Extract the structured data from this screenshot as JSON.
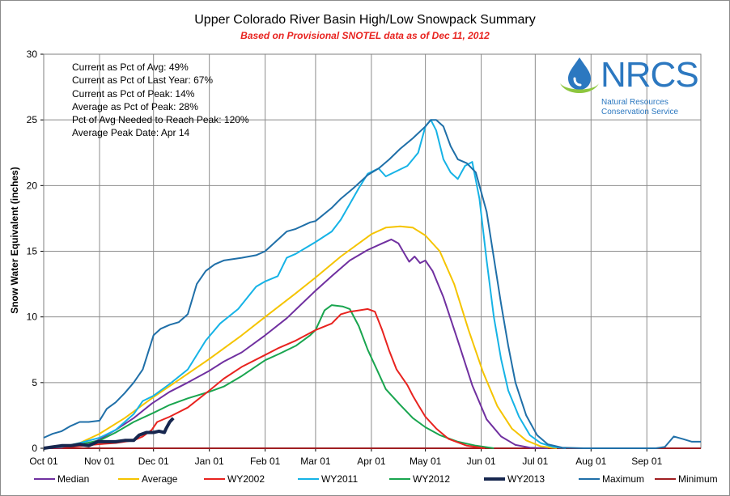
{
  "chart_data": {
    "type": "line",
    "title": "Upper Colorado River Basin High/Low Snowpack Summary",
    "subtitle": "Based on Provisional SNOTEL data as of Dec 11, 2012",
    "ylabel": "Snow Water Equivalent (inches)",
    "xlabel": "",
    "ylim": [
      0,
      30
    ],
    "yticks": [
      0,
      5,
      10,
      15,
      20,
      25,
      30
    ],
    "x_unit": "days since Oct 01",
    "xlim": [
      0,
      365
    ],
    "xticks": [
      {
        "label": "Oct 01",
        "day": 0
      },
      {
        "label": "Nov 01",
        "day": 31
      },
      {
        "label": "Dec 01",
        "day": 61
      },
      {
        "label": "Jan 01",
        "day": 92
      },
      {
        "label": "Feb 01",
        "day": 123
      },
      {
        "label": "Mar 01",
        "day": 151
      },
      {
        "label": "Apr 01",
        "day": 182
      },
      {
        "label": "May 01",
        "day": 212
      },
      {
        "label": "Jun 01",
        "day": 243
      },
      {
        "label": "Jul 01",
        "day": 273
      },
      {
        "label": "Aug 01",
        "day": 304
      },
      {
        "label": "Sep 01",
        "day": 335
      }
    ],
    "grid": true,
    "legend_position": "bottom",
    "series": [
      {
        "name": "Median",
        "color": "#7030a0",
        "width": 2,
        "points": [
          [
            0,
            0
          ],
          [
            10,
            0.05
          ],
          [
            20,
            0.2
          ],
          [
            30,
            0.6
          ],
          [
            40,
            1.4
          ],
          [
            50,
            2.3
          ],
          [
            60,
            3.4
          ],
          [
            70,
            4.3
          ],
          [
            80,
            5.0
          ],
          [
            92,
            5.9
          ],
          [
            100,
            6.6
          ],
          [
            110,
            7.3
          ],
          [
            123,
            8.6
          ],
          [
            135,
            9.9
          ],
          [
            151,
            12.0
          ],
          [
            160,
            13.1
          ],
          [
            170,
            14.3
          ],
          [
            180,
            15.1
          ],
          [
            188,
            15.6
          ],
          [
            193,
            15.9
          ],
          [
            197,
            15.6
          ],
          [
            200,
            14.9
          ],
          [
            203,
            14.2
          ],
          [
            206,
            14.6
          ],
          [
            209,
            14.1
          ],
          [
            212,
            14.3
          ],
          [
            216,
            13.5
          ],
          [
            222,
            11.5
          ],
          [
            230,
            8.2
          ],
          [
            238,
            4.8
          ],
          [
            246,
            2.2
          ],
          [
            254,
            0.9
          ],
          [
            262,
            0.25
          ],
          [
            270,
            0.05
          ],
          [
            280,
            0
          ]
        ]
      },
      {
        "name": "Average",
        "color": "#f5c400",
        "width": 2,
        "points": [
          [
            0,
            0
          ],
          [
            10,
            0.1
          ],
          [
            20,
            0.4
          ],
          [
            31,
            1.1
          ],
          [
            45,
            2.3
          ],
          [
            61,
            3.9
          ],
          [
            75,
            5.2
          ],
          [
            92,
            6.8
          ],
          [
            110,
            8.6
          ],
          [
            123,
            10.0
          ],
          [
            140,
            11.8
          ],
          [
            151,
            13.0
          ],
          [
            165,
            14.6
          ],
          [
            182,
            16.3
          ],
          [
            190,
            16.8
          ],
          [
            198,
            16.9
          ],
          [
            205,
            16.8
          ],
          [
            212,
            16.2
          ],
          [
            220,
            15.0
          ],
          [
            228,
            12.5
          ],
          [
            236,
            9.0
          ],
          [
            244,
            5.8
          ],
          [
            252,
            3.2
          ],
          [
            260,
            1.5
          ],
          [
            268,
            0.6
          ],
          [
            276,
            0.15
          ],
          [
            285,
            0
          ]
        ]
      },
      {
        "name": "WY2002",
        "color": "#e8231f",
        "width": 2,
        "points": [
          [
            0,
            0
          ],
          [
            15,
            0.1
          ],
          [
            30,
            0.3
          ],
          [
            40,
            0.4
          ],
          [
            45,
            0.5
          ],
          [
            50,
            0.6
          ],
          [
            55,
            0.9
          ],
          [
            60,
            1.4
          ],
          [
            63,
            2.0
          ],
          [
            70,
            2.4
          ],
          [
            80,
            3.1
          ],
          [
            92,
            4.4
          ],
          [
            100,
            5.3
          ],
          [
            110,
            6.2
          ],
          [
            123,
            7.1
          ],
          [
            130,
            7.6
          ],
          [
            140,
            8.2
          ],
          [
            151,
            9.0
          ],
          [
            160,
            9.5
          ],
          [
            165,
            10.2
          ],
          [
            170,
            10.4
          ],
          [
            175,
            10.5
          ],
          [
            180,
            10.6
          ],
          [
            184,
            10.4
          ],
          [
            188,
            9.0
          ],
          [
            192,
            7.4
          ],
          [
            196,
            6.0
          ],
          [
            199,
            5.4
          ],
          [
            202,
            4.8
          ],
          [
            205,
            4.0
          ],
          [
            208,
            3.3
          ],
          [
            212,
            2.4
          ],
          [
            218,
            1.5
          ],
          [
            225,
            0.7
          ],
          [
            235,
            0.2
          ],
          [
            245,
            0
          ]
        ]
      },
      {
        "name": "WY2011",
        "color": "#16b3e6",
        "width": 2,
        "points": [
          [
            0,
            0
          ],
          [
            10,
            0.1
          ],
          [
            20,
            0.4
          ],
          [
            31,
            0.8
          ],
          [
            40,
            1.4
          ],
          [
            50,
            2.6
          ],
          [
            55,
            3.6
          ],
          [
            61,
            4.0
          ],
          [
            70,
            4.9
          ],
          [
            80,
            6.0
          ],
          [
            90,
            8.2
          ],
          [
            98,
            9.5
          ],
          [
            108,
            10.6
          ],
          [
            118,
            12.3
          ],
          [
            123,
            12.7
          ],
          [
            130,
            13.1
          ],
          [
            135,
            14.5
          ],
          [
            140,
            14.8
          ],
          [
            151,
            15.7
          ],
          [
            160,
            16.5
          ],
          [
            165,
            17.4
          ],
          [
            170,
            18.6
          ],
          [
            175,
            19.8
          ],
          [
            180,
            20.9
          ],
          [
            186,
            21.3
          ],
          [
            190,
            20.7
          ],
          [
            196,
            21.1
          ],
          [
            202,
            21.5
          ],
          [
            208,
            22.5
          ],
          [
            212,
            24.5
          ],
          [
            215,
            25.0
          ],
          [
            218,
            24.2
          ],
          [
            222,
            22.0
          ],
          [
            226,
            21.0
          ],
          [
            230,
            20.5
          ],
          [
            234,
            21.5
          ],
          [
            238,
            21.8
          ],
          [
            242,
            19.0
          ],
          [
            246,
            14.3
          ],
          [
            250,
            10.0
          ],
          [
            254,
            6.8
          ],
          [
            258,
            4.4
          ],
          [
            264,
            2.4
          ],
          [
            270,
            1.0
          ],
          [
            276,
            0.4
          ],
          [
            283,
            0.1
          ],
          [
            290,
            0
          ]
        ]
      },
      {
        "name": "WY2012",
        "color": "#19a54f",
        "width": 2,
        "points": [
          [
            0,
            0
          ],
          [
            10,
            0.1
          ],
          [
            20,
            0.3
          ],
          [
            31,
            0.6
          ],
          [
            40,
            1.2
          ],
          [
            50,
            2.0
          ],
          [
            61,
            2.7
          ],
          [
            70,
            3.3
          ],
          [
            80,
            3.8
          ],
          [
            92,
            4.3
          ],
          [
            100,
            4.7
          ],
          [
            110,
            5.5
          ],
          [
            123,
            6.7
          ],
          [
            131,
            7.2
          ],
          [
            140,
            7.8
          ],
          [
            148,
            8.6
          ],
          [
            151,
            9.0
          ],
          [
            156,
            10.5
          ],
          [
            160,
            10.9
          ],
          [
            166,
            10.8
          ],
          [
            170,
            10.6
          ],
          [
            175,
            9.3
          ],
          [
            180,
            7.5
          ],
          [
            185,
            6.0
          ],
          [
            190,
            4.5
          ],
          [
            198,
            3.3
          ],
          [
            205,
            2.3
          ],
          [
            212,
            1.6
          ],
          [
            220,
            1.0
          ],
          [
            230,
            0.5
          ],
          [
            240,
            0.2
          ],
          [
            250,
            0
          ]
        ]
      },
      {
        "name": "WY2013",
        "color": "#17274f",
        "width": 4,
        "points": [
          [
            0,
            0
          ],
          [
            5,
            0.1
          ],
          [
            10,
            0.2
          ],
          [
            15,
            0.2
          ],
          [
            20,
            0.3
          ],
          [
            25,
            0.2
          ],
          [
            30,
            0.5
          ],
          [
            35,
            0.5
          ],
          [
            40,
            0.5
          ],
          [
            45,
            0.6
          ],
          [
            50,
            0.6
          ],
          [
            53,
            1.0
          ],
          [
            57,
            1.2
          ],
          [
            61,
            1.2
          ],
          [
            64,
            1.3
          ],
          [
            67,
            1.2
          ],
          [
            68,
            1.5
          ],
          [
            70,
            2.0
          ],
          [
            72,
            2.3
          ]
        ]
      },
      {
        "name": "Maximum",
        "color": "#1f6fa8",
        "width": 2,
        "points": [
          [
            0,
            0.8
          ],
          [
            5,
            1.1
          ],
          [
            10,
            1.3
          ],
          [
            15,
            1.7
          ],
          [
            20,
            2.0
          ],
          [
            25,
            2.0
          ],
          [
            31,
            2.1
          ],
          [
            35,
            3.0
          ],
          [
            40,
            3.5
          ],
          [
            45,
            4.2
          ],
          [
            50,
            5.0
          ],
          [
            55,
            6.0
          ],
          [
            61,
            8.6
          ],
          [
            65,
            9.1
          ],
          [
            70,
            9.4
          ],
          [
            75,
            9.6
          ],
          [
            80,
            10.2
          ],
          [
            85,
            12.5
          ],
          [
            90,
            13.5
          ],
          [
            95,
            14.0
          ],
          [
            100,
            14.3
          ],
          [
            110,
            14.5
          ],
          [
            118,
            14.7
          ],
          [
            123,
            15.0
          ],
          [
            127,
            15.5
          ],
          [
            135,
            16.5
          ],
          [
            140,
            16.7
          ],
          [
            148,
            17.2
          ],
          [
            151,
            17.3
          ],
          [
            160,
            18.3
          ],
          [
            165,
            19.0
          ],
          [
            172,
            19.8
          ],
          [
            180,
            20.8
          ],
          [
            186,
            21.3
          ],
          [
            192,
            22.0
          ],
          [
            198,
            22.8
          ],
          [
            205,
            23.6
          ],
          [
            212,
            24.5
          ],
          [
            215,
            25.0
          ],
          [
            218,
            25.0
          ],
          [
            222,
            24.5
          ],
          [
            226,
            23.0
          ],
          [
            230,
            22.0
          ],
          [
            235,
            21.7
          ],
          [
            240,
            21.0
          ],
          [
            243,
            19.5
          ],
          [
            246,
            18.0
          ],
          [
            250,
            14.5
          ],
          [
            254,
            11.0
          ],
          [
            258,
            7.8
          ],
          [
            262,
            5.0
          ],
          [
            268,
            2.5
          ],
          [
            274,
            1.0
          ],
          [
            280,
            0.3
          ],
          [
            288,
            0.05
          ],
          [
            300,
            0
          ],
          [
            340,
            0
          ],
          [
            345,
            0.1
          ],
          [
            350,
            0.9
          ],
          [
            355,
            0.7
          ],
          [
            360,
            0.5
          ],
          [
            365,
            0.5
          ]
        ]
      },
      {
        "name": "Minimum",
        "color": "#a01e22",
        "width": 2,
        "points": [
          [
            0,
            0
          ],
          [
            30,
            0
          ],
          [
            60,
            0
          ],
          [
            120,
            0
          ],
          [
            200,
            0
          ],
          [
            280,
            0
          ],
          [
            365,
            0
          ]
        ]
      }
    ],
    "annotations": [
      "Current  as Pct of Avg: 49%",
      "Current  as Pct of Last Year: 67%",
      "Current  as Pct of Peak: 14%",
      "Average as Pct of Peak: 28%",
      "Pct of Avg Needed to Reach Peak: 120%",
      "Average Peak Date: Apr 14"
    ]
  },
  "logo": {
    "wordmark": "NRCS",
    "line1": "Natural Resources",
    "line2": "Conservation Service",
    "drop_icon": "water-drop-icon",
    "drop_color": "#2c78c0",
    "swoosh_color": "#8dc63f"
  }
}
